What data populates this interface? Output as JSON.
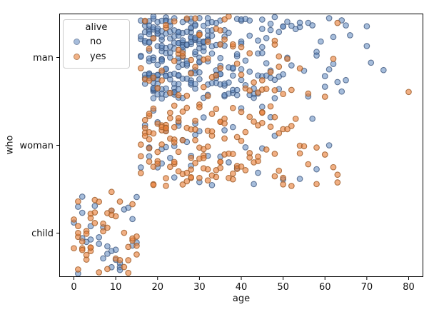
{
  "chart_data": {
    "type": "scatter",
    "variant": "strip-plot-categorical-y",
    "title": "",
    "xlabel": "age",
    "ylabel": "who",
    "xlim": [
      -3.5,
      83.5
    ],
    "x_ticks": [
      0,
      10,
      20,
      30,
      40,
      50,
      60,
      70,
      80
    ],
    "categories": [
      "man",
      "woman",
      "child"
    ],
    "grid": false,
    "jitter": 0.47,
    "marker": {
      "radius": 3.8,
      "stroke_width": 1.1
    },
    "palette": {
      "no": {
        "fill": "rgba(93,134,189,0.55)",
        "edge": "rgba(55,80,120,0.75)"
      },
      "yes": {
        "fill": "rgba(233,126,55,0.62)",
        "edge": "rgba(160,95,45,0.85)"
      }
    },
    "legend": {
      "title": "alive",
      "position": "upper left",
      "entries": [
        {
          "label": "no",
          "fill": "#a6bcdb",
          "edge": "#7e90ac"
        },
        {
          "label": "yes",
          "fill": "#f2b287",
          "edge": "#b3825a"
        }
      ]
    },
    "series": [
      {
        "who": "man",
        "alive": "no",
        "age_start": 16,
        "counts_per_age": [
          5,
          8,
          14,
          15,
          13,
          14,
          12,
          10,
          11,
          13,
          11,
          8,
          13,
          11,
          10,
          7,
          9,
          6,
          6,
          7,
          7,
          4,
          5,
          5,
          6,
          3,
          4,
          3,
          4,
          5,
          3,
          4,
          3,
          3,
          3,
          2,
          2,
          1,
          2,
          1,
          2,
          1,
          2,
          1,
          2,
          2,
          2,
          1,
          2,
          2,
          1,
          0,
          0,
          0,
          2,
          1,
          0,
          0,
          1
        ]
      },
      {
        "who": "man",
        "alive": "yes",
        "age_start": 16,
        "counts_per_age": [
          1,
          2,
          2,
          2,
          1,
          2,
          2,
          1,
          2,
          3,
          2,
          2,
          2,
          2,
          2,
          2,
          3,
          1,
          2,
          3,
          2,
          1,
          2,
          1,
          2,
          1,
          2,
          1,
          1,
          2,
          1,
          1,
          3,
          2,
          1,
          1,
          1,
          0,
          1,
          0,
          1,
          0,
          0,
          0,
          1,
          0,
          1,
          1,
          0,
          0,
          0,
          0,
          0,
          0,
          0,
          0,
          0,
          0,
          0,
          0,
          0,
          0,
          0,
          0,
          1
        ]
      },
      {
        "who": "woman",
        "alive": "no",
        "age_start": 16,
        "counts_per_age": [
          1,
          1,
          3,
          1,
          2,
          2,
          2,
          1,
          2,
          2,
          1,
          1,
          2,
          2,
          2,
          1,
          1,
          1,
          0,
          1,
          1,
          1,
          1,
          1,
          1,
          1,
          0,
          1,
          1,
          2,
          0,
          1,
          1,
          0,
          1,
          0,
          0,
          0,
          1,
          0,
          0,
          1,
          1,
          0,
          0,
          1
        ]
      },
      {
        "who": "woman",
        "alive": "yes",
        "age_start": 16,
        "counts_per_age": [
          3,
          4,
          6,
          5,
          4,
          4,
          6,
          4,
          6,
          4,
          4,
          4,
          5,
          4,
          5,
          4,
          4,
          4,
          3,
          5,
          4,
          2,
          4,
          3,
          3,
          2,
          3,
          2,
          3,
          3,
          1,
          2,
          3,
          2,
          3,
          1,
          2,
          1,
          2,
          1,
          1,
          0,
          2,
          0,
          1,
          0,
          1,
          2
        ]
      },
      {
        "who": "child",
        "alive": "no",
        "age_start": 0,
        "counts_per_age": [
          1,
          2,
          3,
          1,
          2,
          1,
          2,
          2,
          2,
          3,
          2,
          3,
          1,
          1,
          2,
          2
        ]
      },
      {
        "who": "child",
        "alive": "yes",
        "age_start": 0,
        "counts_per_age": [
          2,
          5,
          3,
          4,
          5,
          3,
          2,
          2,
          3,
          3,
          2,
          2,
          2,
          3,
          3,
          3
        ]
      }
    ]
  }
}
